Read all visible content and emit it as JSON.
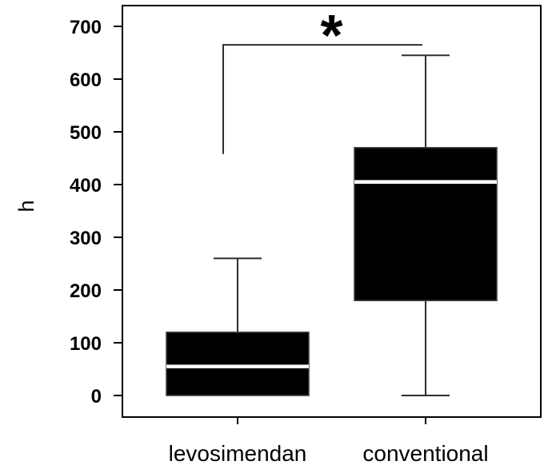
{
  "figure": {
    "background": "#ffffff",
    "axis_color": "#000000",
    "whisker_color": "#2e2e2e",
    "box_fill": "#000000",
    "box_stroke": "#404040",
    "median_color": "#ffffff",
    "text_color": "#000000"
  },
  "chart_data": {
    "type": "boxplot",
    "title": "",
    "xlabel": "",
    "ylabel": "h",
    "categories": [
      "levosimendan",
      "conventional"
    ],
    "ylim": [
      0,
      700
    ],
    "yticks": [
      0,
      100,
      200,
      300,
      400,
      500,
      600,
      700
    ],
    "grid": false,
    "frame": true,
    "legend": false,
    "series": [
      {
        "name": "levosimendan",
        "min": 0,
        "q1": 0,
        "median": 55,
        "q3": 120,
        "max": 260
      },
      {
        "name": "conventional",
        "min": 0,
        "q1": 180,
        "median": 405,
        "q3": 470,
        "max": 645
      }
    ],
    "annotation": {
      "symbol": "*",
      "bracket_top_value": 665,
      "bracket_left_arm_end_value": 458
    }
  }
}
